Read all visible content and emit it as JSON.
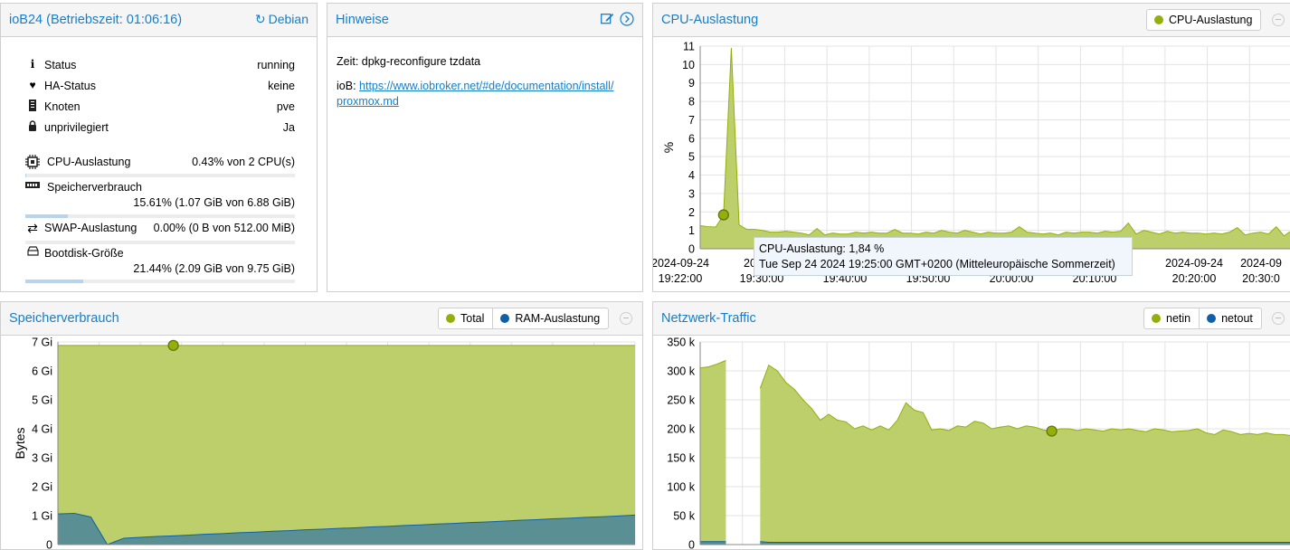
{
  "summary": {
    "title": "ioB24 (Betriebszeit: 01:06:16)",
    "os": "Debian",
    "rows": [
      {
        "icon": "info-icon",
        "label": "Status",
        "value": "running"
      },
      {
        "icon": "heartbeat-icon",
        "label": "HA-Status",
        "value": "keine"
      },
      {
        "icon": "server-icon",
        "label": "Knoten",
        "value": "pve"
      },
      {
        "icon": "lock-icon",
        "label": "unprivilegiert",
        "value": "Ja"
      }
    ],
    "cpu": {
      "label": "CPU-Auslastung",
      "value": "0.43% von 2 CPU(s)",
      "percent": 0.43
    },
    "mem": {
      "label": "Speicherverbrauch",
      "value": "15.61% (1.07 GiB von 6.88 GiB)",
      "percent": 15.61
    },
    "swap": {
      "label": "SWAP-Auslastung",
      "value": "0.00% (0 B von 512.00 MiB)",
      "percent": 0
    },
    "disk": {
      "label": "Bootdisk-Größe",
      "value": "21.44% (2.09 GiB von 9.75 GiB)",
      "percent": 21.44
    }
  },
  "notes": {
    "title": "Hinweise",
    "line1": "Zeit: dpkg-reconfigure tzdata",
    "line2_prefix": "ioB: ",
    "link_a": "https://www.iobroker.net/#de/documentation/install/",
    "link_b": "proxmox.md"
  },
  "colors": {
    "accent": "#157fcc",
    "green_fill": "#bccf6a",
    "green_line": "#94ae0a",
    "teal_fill": "#5a8f93",
    "teal_line": "#115fa6"
  },
  "cpu_chart": {
    "title": "CPU-Auslastung",
    "legend": [
      "CPU-Auslastung"
    ],
    "chart_data": {
      "type": "area",
      "ylabel": "%",
      "ylim": [
        0,
        11
      ],
      "yticks": [
        "0",
        "1",
        "2",
        "3",
        "4",
        "5",
        "6",
        "7",
        "8",
        "9",
        "10",
        "11"
      ],
      "x_tick_dates": [
        "2024-09-24",
        "",
        "",
        "",
        "",
        "",
        "2024-09-24",
        "2024-09"
      ],
      "x_tick_times": [
        "19:22:00",
        "",
        "",
        "",
        "",
        "",
        "20:20:00",
        "20:30:0"
      ],
      "x_visible_fragments": [
        "20",
        "19:30:00",
        "19:40:00",
        "19:50:00",
        "20:00:00",
        "20:10:00"
      ],
      "series": [
        {
          "name": "CPU-Auslastung",
          "values": [
            1.25,
            1.2,
            1.18,
            1.84,
            10.9,
            1.3,
            1.05,
            1.05,
            1.0,
            0.9,
            0.9,
            0.95,
            0.9,
            0.85,
            0.75,
            1.1,
            0.75,
            0.85,
            0.8,
            0.8,
            0.9,
            0.85,
            0.9,
            0.85,
            0.85,
            1.05,
            0.85,
            0.85,
            0.8,
            0.9,
            0.85,
            1.0,
            0.9,
            0.85,
            1.0,
            0.9,
            0.8,
            0.9,
            0.85,
            0.85,
            0.9,
            1.2,
            0.9,
            0.85,
            0.8,
            0.85,
            0.75,
            0.9,
            0.85,
            0.9,
            0.9,
            0.85,
            0.95,
            0.9,
            0.95,
            1.4,
            0.8,
            1.0,
            0.9,
            0.8,
            0.95,
            0.85,
            0.9,
            0.85,
            0.85,
            0.8,
            0.85,
            0.8,
            0.9,
            1.15,
            0.75,
            0.85,
            0.9,
            0.8,
            1.2,
            0.7,
            1.0
          ]
        }
      ]
    },
    "tooltip_line1": "CPU-Auslastung: 1,84 %",
    "tooltip_line2": "Tue Sep 24 2024 19:25:00 GMT+0200 (Mitteleuropäische Sommerzeit)"
  },
  "mem_chart": {
    "title": "Speicherverbrauch",
    "legend": [
      "Total",
      "RAM-Auslastung"
    ],
    "chart_data": {
      "type": "area",
      "ylabel": "Bytes",
      "ylim": [
        0,
        7
      ],
      "yticks": [
        "0",
        "1 Gi",
        "2 Gi",
        "3 Gi",
        "4 Gi",
        "5 Gi",
        "6 Gi",
        "7 Gi"
      ],
      "series": [
        {
          "name": "Total",
          "values": [
            6.88,
            6.88,
            6.88,
            6.88,
            6.88,
            6.88,
            6.88,
            6.88,
            6.88,
            6.88,
            6.88,
            6.88,
            6.88,
            6.88,
            6.88,
            6.88,
            6.88,
            6.88,
            6.88,
            6.88,
            6.88,
            6.88,
            6.88,
            6.88,
            6.88,
            6.88,
            6.88,
            6.88,
            6.88,
            6.88,
            6.88,
            6.88,
            6.88,
            6.88,
            6.88,
            6.88
          ]
        },
        {
          "name": "RAM-Auslastung",
          "values": [
            1.06,
            1.08,
            0.95,
            0.0,
            0.22,
            0.25,
            0.28,
            0.3,
            0.33,
            0.36,
            0.38,
            0.41,
            0.43,
            0.46,
            0.48,
            0.51,
            0.53,
            0.56,
            0.58,
            0.61,
            0.63,
            0.66,
            0.68,
            0.71,
            0.73,
            0.76,
            0.78,
            0.81,
            0.84,
            0.86,
            0.89,
            0.91,
            0.94,
            0.96,
            0.99,
            1.02
          ]
        }
      ]
    }
  },
  "net_chart": {
    "title": "Netzwerk-Traffic",
    "legend": [
      "netin",
      "netout"
    ],
    "chart_data": {
      "type": "area",
      "ylim": [
        0,
        350000
      ],
      "yticks": [
        "0",
        "50 k",
        "100 k",
        "150 k",
        "200 k",
        "250 k",
        "300 k",
        "350 k"
      ],
      "series": [
        {
          "name": "netin",
          "values": [
            305000,
            307000,
            312000,
            318000,
            null,
            null,
            null,
            270000,
            310000,
            300000,
            280000,
            268000,
            250000,
            235000,
            215000,
            225000,
            215000,
            212000,
            200000,
            205000,
            198000,
            205000,
            198000,
            215000,
            245000,
            232000,
            228000,
            198000,
            200000,
            197000,
            205000,
            203000,
            213000,
            210000,
            200000,
            203000,
            205000,
            200000,
            205000,
            203000,
            198000,
            196000,
            200000,
            200000,
            197000,
            200000,
            198000,
            196000,
            200000,
            198000,
            200000,
            197000,
            195000,
            200000,
            198000,
            195000,
            196000,
            197000,
            200000,
            193000,
            190000,
            198000,
            195000,
            190000,
            192000,
            190000,
            193000,
            190000,
            190000,
            188000
          ]
        },
        {
          "name": "netout",
          "values": [
            5000,
            5000,
            5000,
            5000,
            null,
            null,
            null,
            5000,
            4000,
            4000,
            4000,
            4000,
            4000,
            4000,
            4000,
            4000,
            4000,
            4000,
            4000,
            4000,
            4000,
            4000,
            4000,
            4000,
            4000,
            4000,
            4000,
            4000,
            4000,
            4000,
            4000,
            4000,
            4000,
            4000,
            4000,
            4000,
            4000,
            4000,
            4000,
            4000,
            4000,
            4000,
            4000,
            4000,
            4000,
            4000,
            4000,
            4000,
            4000,
            4000,
            4000,
            4000,
            4000,
            4000,
            4000,
            4000,
            4000,
            4000,
            4000,
            4000,
            4000,
            4000,
            4000,
            4000,
            4000,
            4000,
            4000,
            4000,
            4000,
            4000
          ]
        }
      ]
    }
  }
}
